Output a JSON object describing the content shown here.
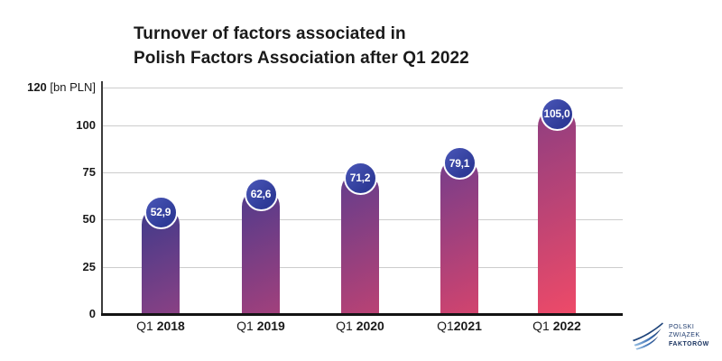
{
  "header": {
    "title_line1": "Turnover of factors associated in",
    "title_line2": "Polish Factors Association after Q1 2022"
  },
  "chart_data": {
    "type": "bar",
    "title": "Turnover of factors associated in Polish Factors Association after Q1 2022",
    "categories": [
      "Q1 2018",
      "Q1 2019",
      "Q1 2020",
      "Q12021",
      "Q1 2022"
    ],
    "x_labels": [
      {
        "prefix": "Q1",
        "year": "2018",
        "space": true
      },
      {
        "prefix": "Q1",
        "year": "2019",
        "space": true
      },
      {
        "prefix": "Q1",
        "year": "2020",
        "space": true
      },
      {
        "prefix": "Q1",
        "year": "2021",
        "space": false
      },
      {
        "prefix": "Q1",
        "year": "2022",
        "space": true
      }
    ],
    "values": [
      52.9,
      62.6,
      71.2,
      79.1,
      105.0
    ],
    "value_labels": [
      "52,9",
      "62,6",
      "71,2",
      "79,1",
      "105,0"
    ],
    "unit": "bn PLN",
    "ylabel": "120 [bn PLN]",
    "ylim": [
      0,
      120
    ],
    "grid": true,
    "legend": null,
    "y_axis": {
      "ticks": [
        {
          "value": 0,
          "label": "0"
        },
        {
          "value": 25,
          "label": "25"
        },
        {
          "value": 50,
          "label": "50"
        },
        {
          "value": 75,
          "label": "75"
        },
        {
          "value": 100,
          "label": "100"
        },
        {
          "value": 120,
          "label": "120",
          "unit_suffix": " [bn PLN]"
        }
      ]
    },
    "bar_gradients": [
      [
        "#3e3a8b",
        "#8a4184"
      ],
      [
        "#4f3b8c",
        "#a2407c"
      ],
      [
        "#613d8d",
        "#ba4274"
      ],
      [
        "#743d8b",
        "#d2446e"
      ],
      [
        "#8e3e81",
        "#ee4a68"
      ]
    ],
    "badge_color": "#35409f"
  },
  "logo": {
    "line1": "POLSKI",
    "line2": "ZWIĄZEK",
    "line3": "FAKTORÓW"
  },
  "colors": {
    "background": "#ffffff",
    "title": "#1a1a1a",
    "grid": "#cccccc",
    "axis": "#141414",
    "badge_blue": "#35409f",
    "badge_ring": "#ffffff",
    "logo_navy": "#1d3a6d"
  }
}
